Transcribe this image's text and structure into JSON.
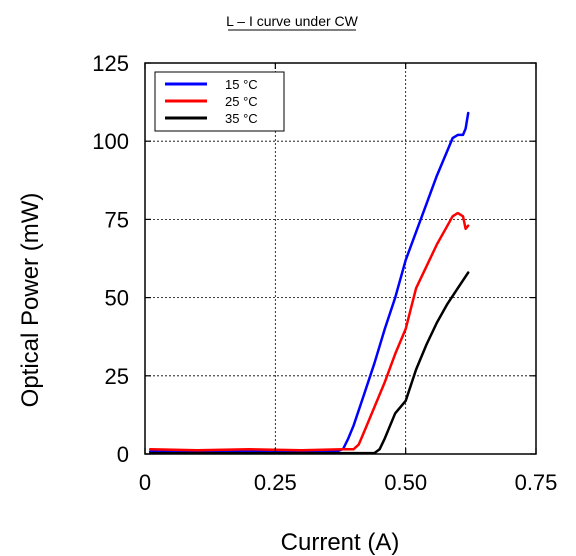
{
  "chart_data": {
    "type": "line",
    "title": "L – I curve under CW",
    "xlabel": "Current (A)",
    "ylabel": "Optical Power (mW)",
    "xlim": [
      0,
      0.75
    ],
    "ylim": [
      0,
      125
    ],
    "xticks": [
      0,
      0.25,
      0.5,
      0.75
    ],
    "xtick_labels": [
      "0",
      "0.25",
      "0.50",
      "0.75"
    ],
    "yticks": [
      0,
      25,
      50,
      75,
      100,
      125
    ],
    "ytick_labels": [
      "0",
      "25",
      "50",
      "75",
      "100",
      "125"
    ],
    "grid": "dashed",
    "legend_position": "top-left",
    "series": [
      {
        "name": "15 °C",
        "color": "#0000ff",
        "x": [
          0.01,
          0.1,
          0.2,
          0.3,
          0.37,
          0.38,
          0.39,
          0.4,
          0.42,
          0.44,
          0.46,
          0.48,
          0.5,
          0.52,
          0.54,
          0.56,
          0.58,
          0.59,
          0.6,
          0.61,
          0.615,
          0.62
        ],
        "y": [
          0.8,
          0.8,
          0.8,
          0.8,
          1.0,
          1.6,
          5,
          9,
          19,
          29,
          40,
          50,
          62,
          71,
          80,
          89,
          97,
          101,
          102,
          102,
          104,
          109
        ]
      },
      {
        "name": "25 °C",
        "color": "#ff0000",
        "x": [
          0.01,
          0.1,
          0.2,
          0.3,
          0.38,
          0.4,
          0.41,
          0.42,
          0.44,
          0.46,
          0.48,
          0.5,
          0.52,
          0.54,
          0.56,
          0.58,
          0.59,
          0.6,
          0.61,
          0.615,
          0.62
        ],
        "y": [
          1.5,
          1.2,
          1.5,
          1.2,
          1.5,
          1.5,
          3,
          7,
          15,
          23,
          32,
          40,
          53,
          60,
          67,
          73,
          76,
          77,
          76,
          72,
          73
        ]
      },
      {
        "name": "35 °C",
        "color": "#000000",
        "x": [
          0.01,
          0.1,
          0.2,
          0.3,
          0.4,
          0.44,
          0.45,
          0.46,
          0.47,
          0.48,
          0.5,
          0.52,
          0.54,
          0.56,
          0.58,
          0.6,
          0.62
        ],
        "y": [
          0.3,
          0.3,
          0.3,
          0.3,
          0.3,
          0.3,
          1.5,
          5,
          9,
          13,
          17,
          27,
          35,
          42,
          48,
          53,
          58
        ]
      }
    ]
  }
}
